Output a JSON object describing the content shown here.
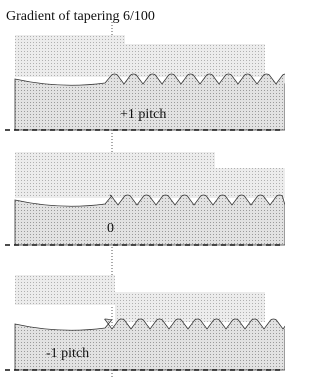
{
  "title": "Gradient of tapering  6/100",
  "panels": [
    {
      "label": "+1 pitch"
    },
    {
      "label": "0"
    },
    {
      "label": "-1 pitch"
    }
  ]
}
